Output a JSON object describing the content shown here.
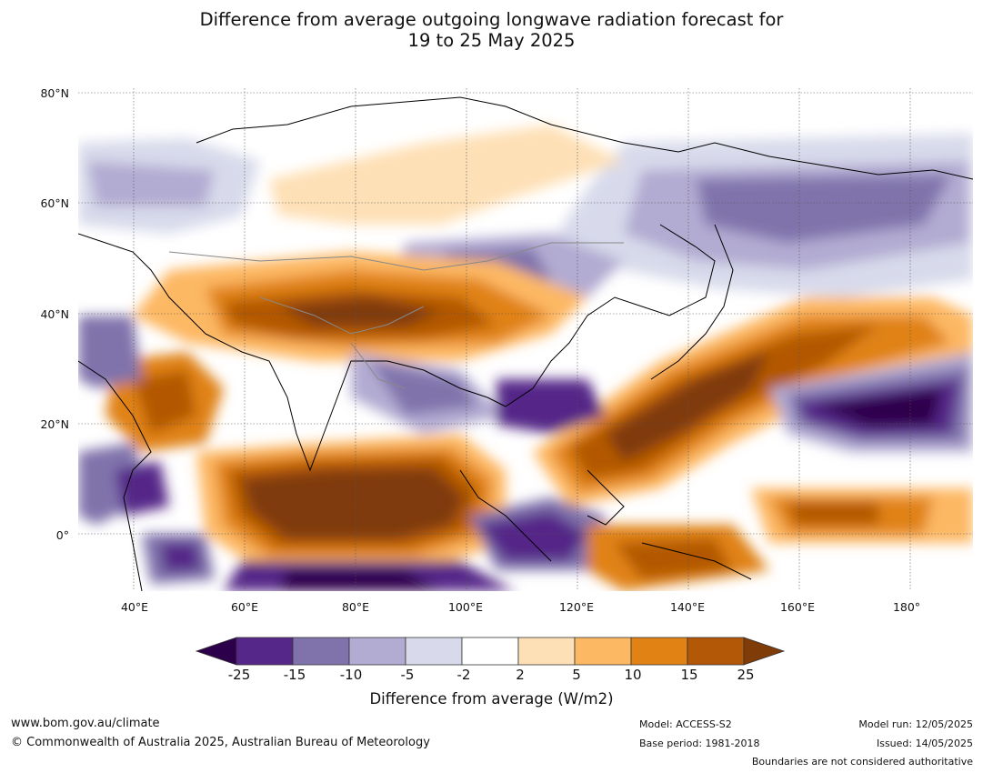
{
  "title_line1": "Difference from average outgoing longwave radiation forecast for",
  "title_line2": "19 to 25 May 2025",
  "axes": {
    "lat_labels": [
      "80°N",
      "60°N",
      "40°N",
      "20°N",
      "0°"
    ],
    "lon_labels": [
      "40°E",
      "60°E",
      "80°E",
      "100°E",
      "120°E",
      "140°E",
      "160°E",
      "180°"
    ]
  },
  "colorbar": {
    "tick_labels": [
      "-25",
      "-15",
      "-10",
      "-5",
      "-2",
      "2",
      "5",
      "10",
      "15",
      "25"
    ],
    "title": "Difference from average (W/m2)",
    "colors": [
      "#2d004b",
      "#542788",
      "#8073ac",
      "#b2abd2",
      "#d8daeb",
      "#ffffff",
      "#fee0b6",
      "#fdb863",
      "#e08214",
      "#b35806",
      "#7f3b08"
    ]
  },
  "footer": {
    "website": "www.bom.gov.au/climate",
    "copyright": "© Commonwealth of Australia 2025, Australian Bureau of Meteorology",
    "model": "Model: ACCESS-S2",
    "base_period": "Base period: 1981-2018",
    "model_run": "Model run: 12/05/2025",
    "issued": "Issued: 14/05/2025",
    "disclaimer": "Boundaries are not considered authoritative"
  }
}
